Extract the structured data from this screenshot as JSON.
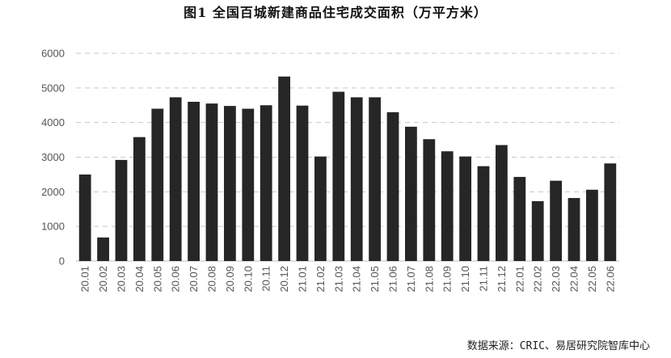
{
  "chart_data": {
    "type": "bar",
    "title": "图1   全国百城新建商品住宅成交面积（万平方米）",
    "categories": [
      "20.01",
      "20.02",
      "20.03",
      "20.04",
      "20.05",
      "20.06",
      "20.07",
      "20.08",
      "20.09",
      "20.10",
      "20.11",
      "20.12",
      "21.01",
      "21.02",
      "21.03",
      "21.04",
      "21.05",
      "21.06",
      "21.07",
      "21.08",
      "21.09",
      "21.10",
      "21.11",
      "21.12",
      "22.01",
      "22.02",
      "22.03",
      "22.04",
      "22.05",
      "22.06"
    ],
    "values": [
      2500,
      680,
      2920,
      3580,
      4400,
      4730,
      4600,
      4550,
      4480,
      4400,
      4500,
      5330,
      4490,
      3020,
      4890,
      4730,
      4730,
      4300,
      3880,
      3520,
      3170,
      3020,
      2740,
      3350,
      2430,
      1730,
      2320,
      1820,
      2060,
      2820
    ],
    "ylim": [
      0,
      6000
    ],
    "yticks": [
      0,
      1000,
      2000,
      3000,
      4000,
      5000,
      6000
    ],
    "grid": true,
    "bar_color": "#262626",
    "grid_color": "#c8c8c8"
  },
  "source": "数据来源：CRIC、易居研究院智库中心"
}
